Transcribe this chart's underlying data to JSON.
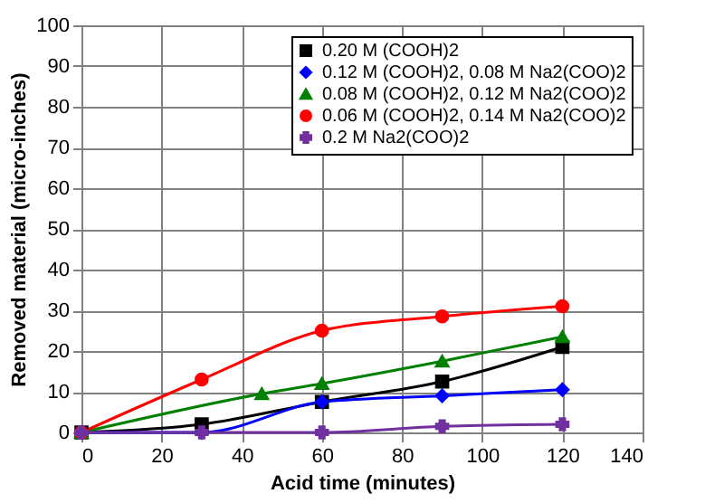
{
  "chart_data": {
    "type": "line",
    "xlabel": "Acid time   (minutes)",
    "ylabel": "Removed material   (micro-inches)",
    "xlim": [
      0,
      140
    ],
    "xticks": [
      0,
      20,
      40,
      60,
      80,
      100,
      120,
      140
    ],
    "ylim": [
      0,
      100
    ],
    "yticks": [
      0,
      10,
      20,
      30,
      40,
      50,
      60,
      70,
      80,
      90,
      100
    ],
    "grid": true,
    "legend": "top right",
    "line_style": "solid",
    "series": [
      {
        "name": "0.20 M (COOH)2",
        "color": "#000000",
        "marker": "square",
        "x": [
          0,
          30,
          60,
          90,
          120
        ],
        "values": [
          0,
          2,
          7.5,
          12.5,
          21
        ]
      },
      {
        "name": "0.12 M (COOH)2, 0.08 M Na2(COO)2",
        "color": "#0000ff",
        "marker": "diamond",
        "x": [
          0,
          30,
          60,
          90,
          120
        ],
        "values": [
          0,
          0,
          7.5,
          9,
          10.5
        ]
      },
      {
        "name": "0.08 M (COOH)2, 0.12 M Na2(COO)2",
        "color": "#008000",
        "marker": "triangle",
        "x": [
          0,
          45,
          60,
          90,
          120
        ],
        "values": [
          0,
          9.5,
          12,
          17.5,
          23.5
        ]
      },
      {
        "name": "0.06 M (COOH)2, 0.14 M Na2(COO)2",
        "color": "#ff0000",
        "marker": "circle",
        "x": [
          0,
          30,
          60,
          90,
          120
        ],
        "values": [
          0,
          13,
          25,
          28.5,
          31
        ]
      },
      {
        "name": "0.2 M Na2(COO)2",
        "color": "#7030a0",
        "marker": "cross",
        "x": [
          0,
          30,
          60,
          90,
          120
        ],
        "values": [
          0,
          0,
          0,
          1.5,
          2
        ]
      }
    ]
  }
}
